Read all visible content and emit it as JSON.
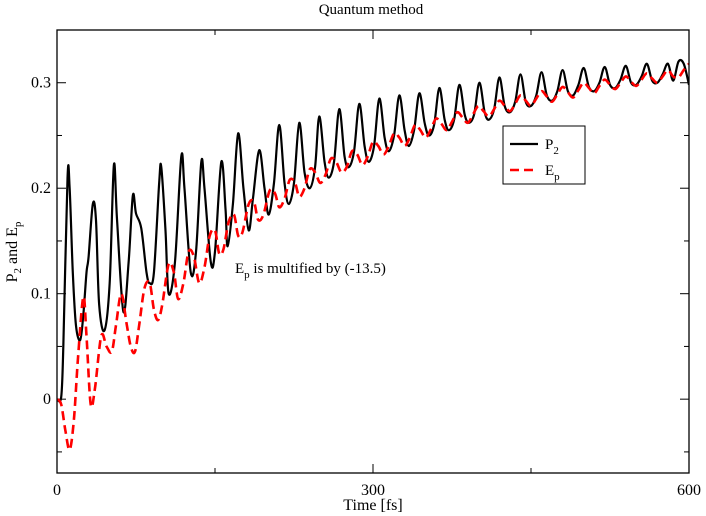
{
  "chart_data": {
    "type": "line",
    "title": "Quantum method",
    "xlabel": "Time [fs]",
    "ylabel": {
      "prefix": "P",
      "sub1": "2",
      "mid": " and E",
      "sub2": "p"
    },
    "xlim": [
      0,
      600
    ],
    "ylim": [
      -0.07,
      0.35
    ],
    "xticks": [
      0,
      300,
      600
    ],
    "yticks": [
      0,
      0.1,
      0.2,
      0.3
    ],
    "xtick_labels": [
      "0",
      "300",
      "600"
    ],
    "ytick_labels": [
      "0",
      "0.1",
      "0.2",
      "0.3"
    ],
    "legend": {
      "placement": "right",
      "entries": [
        {
          "base": "P",
          "sub": "2",
          "color": "#000000",
          "style": "solid"
        },
        {
          "base": "E",
          "sub": "p",
          "color": "#ff0000",
          "style": "dashed"
        }
      ]
    },
    "annotation": {
      "base": "E",
      "sub": "p",
      "text": " is multified by (-13.5)"
    },
    "series": [
      {
        "name": "P2",
        "color": "#000000",
        "style": "solid",
        "points": [
          [
            0,
            0
          ],
          [
            4,
            0.002
          ],
          [
            6,
            0.05
          ],
          [
            10,
            0.21
          ],
          [
            12,
            0.2
          ],
          [
            15,
            0.12
          ],
          [
            18,
            0.07
          ],
          [
            22,
            0.056
          ],
          [
            25,
            0.08
          ],
          [
            28,
            0.12
          ],
          [
            30,
            0.135
          ],
          [
            34,
            0.185
          ],
          [
            37,
            0.17
          ],
          [
            40,
            0.09
          ],
          [
            45,
            0.065
          ],
          [
            50,
            0.11
          ],
          [
            54,
            0.222
          ],
          [
            57,
            0.17
          ],
          [
            63,
            0.083
          ],
          [
            68,
            0.13
          ],
          [
            72,
            0.193
          ],
          [
            75,
            0.176
          ],
          [
            80,
            0.162
          ],
          [
            85,
            0.12
          ],
          [
            88,
            0.11
          ],
          [
            92,
            0.12
          ],
          [
            97,
            0.205
          ],
          [
            99,
            0.22
          ],
          [
            103,
            0.16
          ],
          [
            106,
            0.1
          ],
          [
            112,
            0.13
          ],
          [
            118,
            0.23
          ],
          [
            121,
            0.2
          ],
          [
            127,
            0.12
          ],
          [
            132,
            0.14
          ],
          [
            137,
            0.225
          ],
          [
            140,
            0.2
          ],
          [
            146,
            0.13
          ],
          [
            150,
            0.14
          ],
          [
            156,
            0.225
          ],
          [
            160,
            0.18
          ],
          [
            162,
            0.145
          ],
          [
            167,
            0.185
          ],
          [
            172,
            0.252
          ],
          [
            177,
            0.2
          ],
          [
            182,
            0.16
          ],
          [
            186,
            0.19
          ],
          [
            192,
            0.236
          ],
          [
            197,
            0.2
          ],
          [
            201,
            0.175
          ],
          [
            206,
            0.205
          ],
          [
            211,
            0.26
          ],
          [
            216,
            0.205
          ],
          [
            220,
            0.185
          ],
          [
            225,
            0.205
          ],
          [
            230,
            0.262
          ],
          [
            235,
            0.215
          ],
          [
            240,
            0.2
          ],
          [
            245,
            0.22
          ],
          [
            249,
            0.268
          ],
          [
            254,
            0.225
          ],
          [
            258,
            0.21
          ],
          [
            263,
            0.225
          ],
          [
            268,
            0.275
          ],
          [
            273,
            0.23
          ],
          [
            277,
            0.22
          ],
          [
            282,
            0.235
          ],
          [
            287,
            0.28
          ],
          [
            292,
            0.24
          ],
          [
            296,
            0.225
          ],
          [
            301,
            0.24
          ],
          [
            306,
            0.285
          ],
          [
            311,
            0.248
          ],
          [
            315,
            0.235
          ],
          [
            320,
            0.25
          ],
          [
            325,
            0.288
          ],
          [
            330,
            0.255
          ],
          [
            334,
            0.24
          ],
          [
            339,
            0.255
          ],
          [
            344,
            0.29
          ],
          [
            349,
            0.262
          ],
          [
            353,
            0.25
          ],
          [
            358,
            0.26
          ],
          [
            363,
            0.295
          ],
          [
            368,
            0.265
          ],
          [
            372,
            0.255
          ],
          [
            377,
            0.265
          ],
          [
            382,
            0.298
          ],
          [
            387,
            0.27
          ],
          [
            391,
            0.262
          ],
          [
            396,
            0.27
          ],
          [
            401,
            0.3
          ],
          [
            406,
            0.272
          ],
          [
            410,
            0.265
          ],
          [
            415,
            0.275
          ],
          [
            420,
            0.305
          ],
          [
            425,
            0.278
          ],
          [
            430,
            0.272
          ],
          [
            435,
            0.282
          ],
          [
            440,
            0.308
          ],
          [
            445,
            0.282
          ],
          [
            450,
            0.278
          ],
          [
            455,
            0.288
          ],
          [
            460,
            0.31
          ],
          [
            465,
            0.288
          ],
          [
            470,
            0.283
          ],
          [
            475,
            0.292
          ],
          [
            480,
            0.312
          ],
          [
            485,
            0.292
          ],
          [
            490,
            0.288
          ],
          [
            495,
            0.298
          ],
          [
            500,
            0.314
          ],
          [
            505,
            0.296
          ],
          [
            510,
            0.292
          ],
          [
            515,
            0.3
          ],
          [
            520,
            0.315
          ],
          [
            525,
            0.298
          ],
          [
            530,
            0.295
          ],
          [
            535,
            0.303
          ],
          [
            540,
            0.316
          ],
          [
            545,
            0.3
          ],
          [
            550,
            0.298
          ],
          [
            555,
            0.306
          ],
          [
            560,
            0.318
          ],
          [
            565,
            0.302
          ],
          [
            570,
            0.3
          ],
          [
            575,
            0.308
          ],
          [
            580,
            0.318
          ],
          [
            585,
            0.302
          ],
          [
            590,
            0.32
          ],
          [
            595,
            0.318
          ],
          [
            600,
            0.298
          ]
        ]
      },
      {
        "name": "Ep",
        "color": "#ff0000",
        "style": "dashed",
        "points": [
          [
            0,
            0
          ],
          [
            4,
            -0.005
          ],
          [
            8,
            -0.03
          ],
          [
            12,
            -0.048
          ],
          [
            16,
            -0.02
          ],
          [
            20,
            0.04
          ],
          [
            25,
            0.097
          ],
          [
            28,
            0.06
          ],
          [
            32,
            -0.005
          ],
          [
            36,
            0.01
          ],
          [
            42,
            0.06
          ],
          [
            47,
            0.05
          ],
          [
            52,
            0.045
          ],
          [
            56,
            0.07
          ],
          [
            61,
            0.1
          ],
          [
            66,
            0.072
          ],
          [
            70,
            0.05
          ],
          [
            74,
            0.045
          ],
          [
            78,
            0.07
          ],
          [
            83,
            0.105
          ],
          [
            88,
            0.11
          ],
          [
            92,
            0.085
          ],
          [
            96,
            0.075
          ],
          [
            100,
            0.09
          ],
          [
            106,
            0.128
          ],
          [
            111,
            0.12
          ],
          [
            115,
            0.095
          ],
          [
            120,
            0.11
          ],
          [
            125,
            0.14
          ],
          [
            130,
            0.135
          ],
          [
            135,
            0.11
          ],
          [
            140,
            0.125
          ],
          [
            145,
            0.155
          ],
          [
            150,
            0.16
          ],
          [
            154,
            0.138
          ],
          [
            158,
            0.142
          ],
          [
            163,
            0.168
          ],
          [
            168,
            0.175
          ],
          [
            172,
            0.155
          ],
          [
            176,
            0.158
          ],
          [
            182,
            0.185
          ],
          [
            187,
            0.187
          ],
          [
            191,
            0.17
          ],
          [
            196,
            0.175
          ],
          [
            202,
            0.198
          ],
          [
            207,
            0.195
          ],
          [
            211,
            0.182
          ],
          [
            216,
            0.19
          ],
          [
            221,
            0.208
          ],
          [
            226,
            0.205
          ],
          [
            230,
            0.192
          ],
          [
            235,
            0.2
          ],
          [
            240,
            0.218
          ],
          [
            245,
            0.215
          ],
          [
            250,
            0.205
          ],
          [
            255,
            0.213
          ],
          [
            260,
            0.228
          ],
          [
            265,
            0.225
          ],
          [
            270,
            0.215
          ],
          [
            275,
            0.22
          ],
          [
            280,
            0.235
          ],
          [
            285,
            0.232
          ],
          [
            290,
            0.222
          ],
          [
            295,
            0.23
          ],
          [
            300,
            0.244
          ],
          [
            305,
            0.24
          ],
          [
            310,
            0.232
          ],
          [
            315,
            0.24
          ],
          [
            320,
            0.252
          ],
          [
            325,
            0.248
          ],
          [
            330,
            0.24
          ],
          [
            335,
            0.248
          ],
          [
            340,
            0.26
          ],
          [
            345,
            0.255
          ],
          [
            350,
            0.248
          ],
          [
            355,
            0.256
          ],
          [
            360,
            0.266
          ],
          [
            365,
            0.261
          ],
          [
            370,
            0.255
          ],
          [
            375,
            0.263
          ],
          [
            380,
            0.272
          ],
          [
            385,
            0.267
          ],
          [
            390,
            0.262
          ],
          [
            395,
            0.27
          ],
          [
            400,
            0.278
          ],
          [
            405,
            0.273
          ],
          [
            410,
            0.268
          ],
          [
            415,
            0.275
          ],
          [
            420,
            0.283
          ],
          [
            425,
            0.278
          ],
          [
            430,
            0.273
          ],
          [
            435,
            0.28
          ],
          [
            440,
            0.288
          ],
          [
            445,
            0.283
          ],
          [
            450,
            0.278
          ],
          [
            455,
            0.285
          ],
          [
            460,
            0.292
          ],
          [
            465,
            0.287
          ],
          [
            470,
            0.282
          ],
          [
            475,
            0.289
          ],
          [
            480,
            0.296
          ],
          [
            485,
            0.291
          ],
          [
            490,
            0.286
          ],
          [
            495,
            0.293
          ],
          [
            500,
            0.3
          ],
          [
            505,
            0.295
          ],
          [
            510,
            0.29
          ],
          [
            515,
            0.297
          ],
          [
            520,
            0.303
          ],
          [
            525,
            0.298
          ],
          [
            530,
            0.294
          ],
          [
            535,
            0.3
          ],
          [
            540,
            0.306
          ],
          [
            545,
            0.301
          ],
          [
            550,
            0.297
          ],
          [
            555,
            0.303
          ],
          [
            560,
            0.309
          ],
          [
            565,
            0.304
          ],
          [
            570,
            0.3
          ],
          [
            575,
            0.306
          ],
          [
            580,
            0.312
          ],
          [
            585,
            0.306
          ],
          [
            590,
            0.305
          ],
          [
            595,
            0.312
          ],
          [
            600,
            0.318
          ]
        ]
      }
    ]
  }
}
